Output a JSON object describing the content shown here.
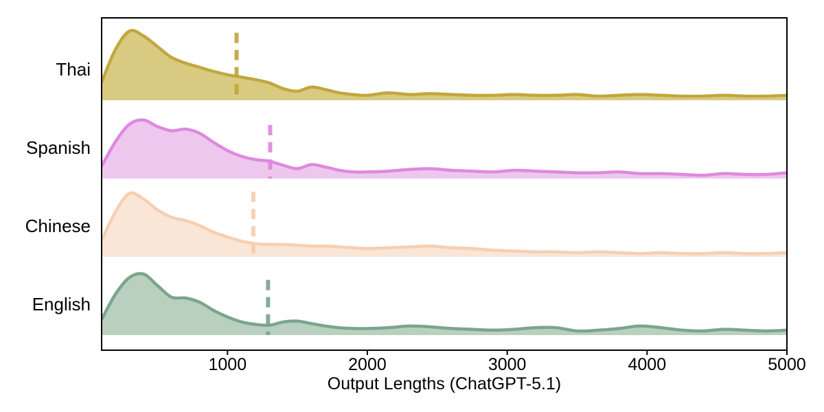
{
  "figure": {
    "background": "#ffffff",
    "axis_color": "#000000",
    "text_color": "#000000"
  },
  "chart_data": {
    "type": "area",
    "variant": "ridgeline-kde",
    "title": "",
    "xlabel": "Output Lengths (ChatGPT-5.1)",
    "ylabel": "",
    "x_range": [
      100,
      5000
    ],
    "x_tick_values": [
      1000,
      2000,
      3000,
      4000,
      5000
    ],
    "x_tick_labels": [
      "1000",
      "2000",
      "3000",
      "4000",
      "5000"
    ],
    "categories": [
      "Thai",
      "Spanish",
      "Chinese",
      "English"
    ],
    "legend": "none",
    "grid": "off",
    "x_grid": [
      100,
      200,
      300,
      400,
      500,
      600,
      700,
      800,
      900,
      1000,
      1100,
      1200,
      1300,
      1400,
      1500,
      1600,
      1700,
      1800,
      1900,
      2000,
      2150,
      2300,
      2450,
      2600,
      2750,
      2900,
      3050,
      3200,
      3350,
      3500,
      3650,
      3800,
      3950,
      4100,
      4250,
      4400,
      4550,
      4700,
      4850,
      5000
    ],
    "series": [
      {
        "name": "Thai",
        "line_color": "#c1a73e",
        "fill_color": "#d9ca81",
        "mean_x": 1065,
        "mean_line_rel_height": 0.82,
        "density": [
          0.22,
          0.62,
          0.84,
          0.78,
          0.65,
          0.52,
          0.45,
          0.4,
          0.35,
          0.31,
          0.28,
          0.25,
          0.21,
          0.14,
          0.11,
          0.16,
          0.13,
          0.09,
          0.07,
          0.06,
          0.09,
          0.07,
          0.08,
          0.07,
          0.06,
          0.06,
          0.07,
          0.06,
          0.06,
          0.07,
          0.05,
          0.06,
          0.07,
          0.06,
          0.05,
          0.05,
          0.06,
          0.05,
          0.05,
          0.06
        ]
      },
      {
        "name": "Spanish",
        "line_color": "#dd8ade",
        "fill_color": "#eec7ef",
        "mean_x": 1305,
        "mean_line_rel_height": 0.65,
        "density": [
          0.15,
          0.45,
          0.66,
          0.71,
          0.63,
          0.58,
          0.6,
          0.55,
          0.44,
          0.34,
          0.27,
          0.23,
          0.21,
          0.16,
          0.12,
          0.17,
          0.14,
          0.1,
          0.08,
          0.08,
          0.09,
          0.11,
          0.12,
          0.1,
          0.09,
          0.08,
          0.1,
          0.09,
          0.08,
          0.07,
          0.07,
          0.08,
          0.06,
          0.06,
          0.05,
          0.04,
          0.06,
          0.05,
          0.05,
          0.07
        ]
      },
      {
        "name": "Chinese",
        "line_color": "#f6cfb2",
        "fill_color": "#fae6d7",
        "mean_x": 1185,
        "mean_line_rel_height": 0.79,
        "density": [
          0.2,
          0.55,
          0.77,
          0.7,
          0.57,
          0.48,
          0.44,
          0.38,
          0.3,
          0.24,
          0.19,
          0.16,
          0.15,
          0.15,
          0.14,
          0.13,
          0.13,
          0.12,
          0.11,
          0.1,
          0.11,
          0.12,
          0.13,
          0.11,
          0.1,
          0.08,
          0.07,
          0.06,
          0.06,
          0.05,
          0.06,
          0.05,
          0.04,
          0.05,
          0.04,
          0.04,
          0.05,
          0.04,
          0.04,
          0.05
        ]
      },
      {
        "name": "English",
        "line_color": "#7ba58e",
        "fill_color": "#bad0bf",
        "mean_x": 1290,
        "mean_line_rel_height": 0.67,
        "density": [
          0.19,
          0.5,
          0.7,
          0.74,
          0.6,
          0.46,
          0.45,
          0.4,
          0.3,
          0.22,
          0.16,
          0.13,
          0.12,
          0.16,
          0.17,
          0.14,
          0.11,
          0.09,
          0.08,
          0.08,
          0.09,
          0.11,
          0.1,
          0.08,
          0.07,
          0.06,
          0.07,
          0.09,
          0.09,
          0.05,
          0.06,
          0.08,
          0.11,
          0.09,
          0.06,
          0.05,
          0.07,
          0.06,
          0.05,
          0.06
        ]
      }
    ]
  }
}
